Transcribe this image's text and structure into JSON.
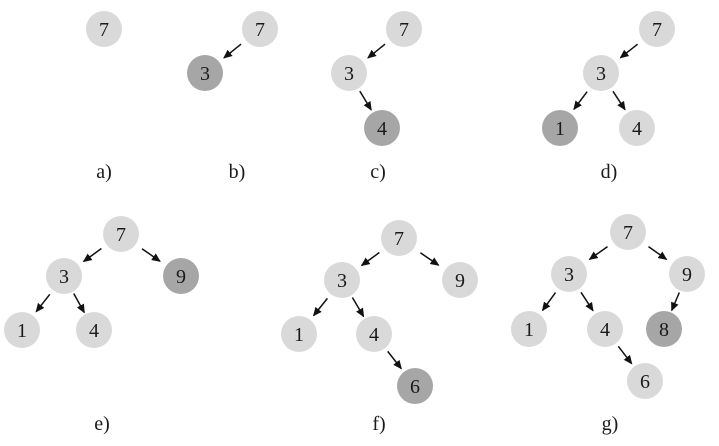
{
  "colors": {
    "node_fill": "#d9d9d9",
    "highlight_fill": "#a6a6a6",
    "text": "#1a1a1a",
    "arrow": "#111111"
  },
  "panels": [
    {
      "label": "a)",
      "nodes": [
        {
          "id": "7",
          "text": "7",
          "highlight": false
        }
      ],
      "edges": []
    },
    {
      "label": "b)",
      "nodes": [
        {
          "id": "7",
          "text": "7",
          "highlight": false
        },
        {
          "id": "3",
          "text": "3",
          "highlight": true
        }
      ],
      "edges": [
        [
          "7",
          "3"
        ]
      ]
    },
    {
      "label": "c)",
      "nodes": [
        {
          "id": "7",
          "text": "7",
          "highlight": false
        },
        {
          "id": "3",
          "text": "3",
          "highlight": false
        },
        {
          "id": "4",
          "text": "4",
          "highlight": true
        }
      ],
      "edges": [
        [
          "7",
          "3"
        ],
        [
          "3",
          "4"
        ]
      ]
    },
    {
      "label": "d)",
      "nodes": [
        {
          "id": "7",
          "text": "7",
          "highlight": false
        },
        {
          "id": "3",
          "text": "3",
          "highlight": false
        },
        {
          "id": "1",
          "text": "1",
          "highlight": true
        },
        {
          "id": "4",
          "text": "4",
          "highlight": false
        }
      ],
      "edges": [
        [
          "7",
          "3"
        ],
        [
          "3",
          "1"
        ],
        [
          "3",
          "4"
        ]
      ]
    },
    {
      "label": "e)",
      "nodes": [
        {
          "id": "7",
          "text": "7",
          "highlight": false
        },
        {
          "id": "3",
          "text": "3",
          "highlight": false
        },
        {
          "id": "9",
          "text": "9",
          "highlight": true
        },
        {
          "id": "1",
          "text": "1",
          "highlight": false
        },
        {
          "id": "4",
          "text": "4",
          "highlight": false
        }
      ],
      "edges": [
        [
          "7",
          "3"
        ],
        [
          "7",
          "9"
        ],
        [
          "3",
          "1"
        ],
        [
          "3",
          "4"
        ]
      ]
    },
    {
      "label": "f)",
      "nodes": [
        {
          "id": "7",
          "text": "7",
          "highlight": false
        },
        {
          "id": "3",
          "text": "3",
          "highlight": false
        },
        {
          "id": "9",
          "text": "9",
          "highlight": false
        },
        {
          "id": "1",
          "text": "1",
          "highlight": false
        },
        {
          "id": "4",
          "text": "4",
          "highlight": false
        },
        {
          "id": "6",
          "text": "6",
          "highlight": true
        }
      ],
      "edges": [
        [
          "7",
          "3"
        ],
        [
          "7",
          "9"
        ],
        [
          "3",
          "1"
        ],
        [
          "3",
          "4"
        ],
        [
          "4",
          "6"
        ]
      ]
    },
    {
      "label": "g)",
      "nodes": [
        {
          "id": "7",
          "text": "7",
          "highlight": false
        },
        {
          "id": "3",
          "text": "3",
          "highlight": false
        },
        {
          "id": "9",
          "text": "9",
          "highlight": false
        },
        {
          "id": "1",
          "text": "1",
          "highlight": false
        },
        {
          "id": "4",
          "text": "4",
          "highlight": false
        },
        {
          "id": "8",
          "text": "8",
          "highlight": true
        },
        {
          "id": "6",
          "text": "6",
          "highlight": false
        }
      ],
      "edges": [
        [
          "7",
          "3"
        ],
        [
          "7",
          "9"
        ],
        [
          "3",
          "1"
        ],
        [
          "3",
          "4"
        ],
        [
          "9",
          "8"
        ],
        [
          "4",
          "6"
        ]
      ]
    }
  ]
}
